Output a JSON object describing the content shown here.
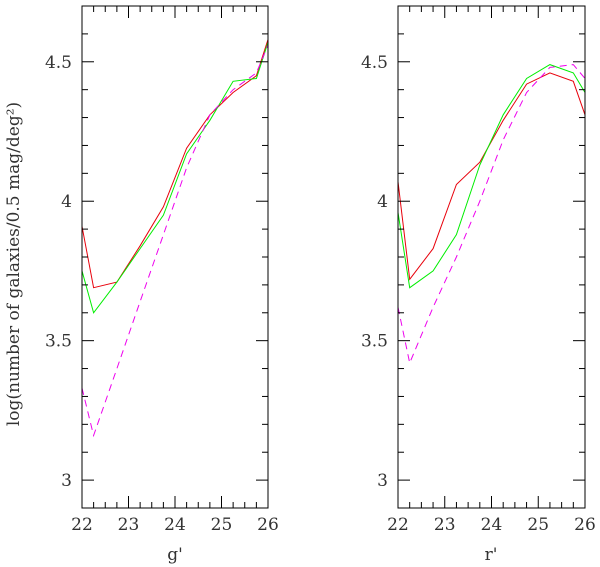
{
  "chart_data": [
    {
      "type": "line",
      "xlabel": "g'",
      "ylabel": "log(number of galaxies/0.5 mag/deg²)",
      "xlim": [
        22,
        26
      ],
      "ylim": [
        2.9,
        4.7
      ],
      "xticks": [
        22,
        23,
        24,
        25,
        26
      ],
      "yticks": [
        3,
        3.5,
        4,
        4.5
      ],
      "xtick_labels": [
        "22",
        "23",
        "24",
        "25",
        "26"
      ],
      "ytick_labels": [
        "3",
        "3.5",
        "4",
        "4.5"
      ],
      "series": [
        {
          "color": "#e8000b",
          "dash": "solid",
          "x": [
            22.0,
            22.25,
            22.75,
            23.25,
            23.75,
            24.25,
            24.75,
            25.25,
            25.75,
            26.0
          ],
          "y": [
            3.91,
            3.69,
            3.71,
            3.84,
            3.98,
            4.19,
            4.31,
            4.39,
            4.45,
            4.58
          ]
        },
        {
          "color": "#00ee00",
          "dash": "solid",
          "x": [
            22.0,
            22.25,
            22.75,
            23.25,
            23.75,
            24.25,
            24.75,
            25.25,
            25.75,
            26.0
          ],
          "y": [
            3.75,
            3.6,
            3.71,
            3.83,
            3.95,
            4.17,
            4.29,
            4.43,
            4.44,
            4.57
          ]
        },
        {
          "color": "#ee00ee",
          "dash": "dashed",
          "x": [
            22.0,
            22.25,
            22.75,
            23.25,
            23.75,
            24.25,
            24.75,
            25.25,
            25.75,
            26.0
          ],
          "y": [
            3.33,
            3.16,
            3.4,
            3.64,
            3.88,
            4.12,
            4.31,
            4.4,
            4.46,
            4.56
          ]
        }
      ]
    },
    {
      "type": "line",
      "xlabel": "r'",
      "ylabel": "",
      "xlim": [
        22,
        26
      ],
      "ylim": [
        2.9,
        4.7
      ],
      "xticks": [
        22,
        23,
        24,
        25,
        26
      ],
      "yticks": [
        3,
        3.5,
        4,
        4.5
      ],
      "xtick_labels": [
        "22",
        "23",
        "24",
        "25",
        "26"
      ],
      "ytick_labels": [
        "3",
        "3.5",
        "4",
        "4.5"
      ],
      "series": [
        {
          "color": "#e8000b",
          "dash": "solid",
          "x": [
            22.0,
            22.25,
            22.75,
            23.25,
            23.75,
            24.25,
            24.75,
            25.25,
            25.75,
            26.0
          ],
          "y": [
            4.07,
            3.72,
            3.83,
            4.06,
            4.14,
            4.29,
            4.42,
            4.46,
            4.43,
            4.31
          ]
        },
        {
          "color": "#00ee00",
          "dash": "solid",
          "x": [
            22.0,
            22.25,
            22.75,
            23.25,
            23.75,
            24.25,
            24.75,
            25.25,
            25.75,
            26.0
          ],
          "y": [
            3.96,
            3.69,
            3.75,
            3.88,
            4.13,
            4.31,
            4.44,
            4.49,
            4.46,
            4.39
          ]
        },
        {
          "color": "#ee00ee",
          "dash": "dashed",
          "x": [
            22.0,
            22.25,
            22.75,
            23.25,
            23.75,
            24.25,
            24.75,
            25.25,
            25.75,
            26.0
          ],
          "y": [
            3.62,
            3.42,
            3.62,
            3.8,
            4.0,
            4.22,
            4.39,
            4.48,
            4.49,
            4.44
          ]
        }
      ]
    }
  ]
}
